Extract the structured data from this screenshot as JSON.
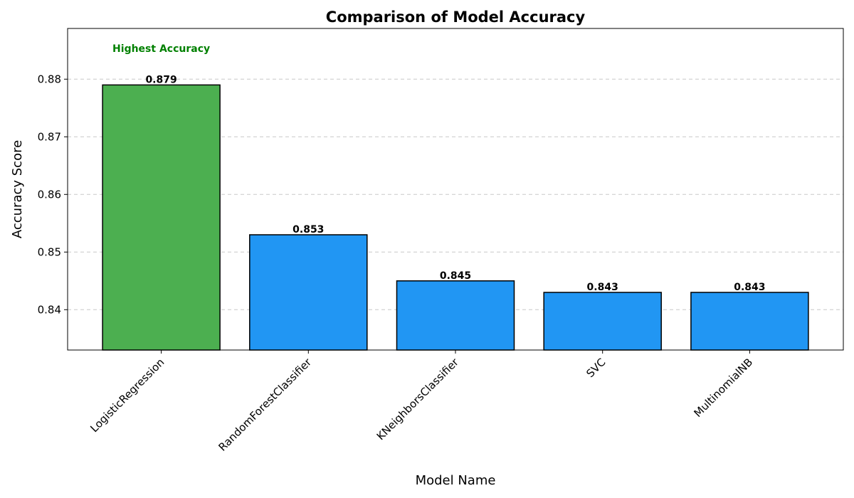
{
  "chart_data": {
    "type": "bar",
    "title": "Comparison of Model Accuracy",
    "xlabel": "Model Name",
    "ylabel": "Accuracy Score",
    "categories": [
      "LogisticRegression",
      "RandomForestClassifier",
      "KNeighborsClassifier",
      "SVC",
      "MultinomialNB"
    ],
    "values": [
      0.879,
      0.853,
      0.845,
      0.843,
      0.843
    ],
    "value_labels": [
      "0.879",
      "0.853",
      "0.845",
      "0.843",
      "0.843"
    ],
    "ylim": [
      0.833,
      0.8888
    ],
    "yticks": [
      0.84,
      0.85,
      0.86,
      0.87,
      0.88
    ],
    "ytick_labels": [
      "0.84",
      "0.85",
      "0.86",
      "0.87",
      "0.88"
    ],
    "grid": "y-dashed",
    "bar_colors": [
      "#4caf50",
      "#2196f3",
      "#2196f3",
      "#2196f3",
      "#2196f3"
    ],
    "highlight_index": 0,
    "annotation": {
      "text": "Highest Accuracy",
      "color": "#008000",
      "category_index": 0,
      "y": 0.8847
    }
  }
}
